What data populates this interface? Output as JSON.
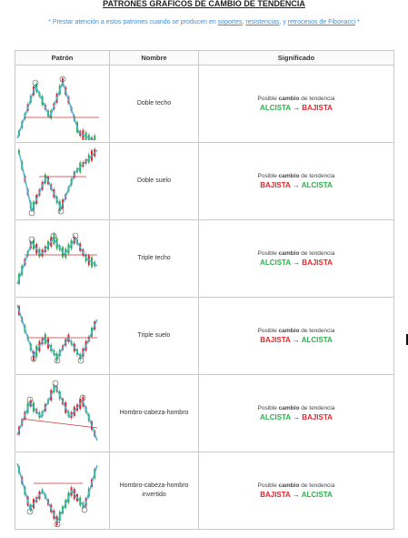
{
  "title": "PATRONES GRÁFICOS DE CAMBIO DE TENDENCIA",
  "note": {
    "prefix": "* Prestar atención a estos patrones cuando se producen en ",
    "link1": "soportes",
    "sep1": ", ",
    "link2": "resistencias",
    "sep2": ", y ",
    "link3": "retrocesos de Fibonacci",
    "suffix": " *"
  },
  "table": {
    "headers": [
      "Patrón",
      "Nombre",
      "Significado"
    ],
    "rows": [
      {
        "name": "Doble techo",
        "line": "Posible",
        "verb": "cambio",
        "rest": "de tendencia",
        "from": "ALCISTA",
        "arrow": "→",
        "to": "BAJISTA",
        "from_color": "#2bb24c",
        "to_color": "#e0262c",
        "chart_icon": "double-top-chart"
      },
      {
        "name": "Doble suelo",
        "line": "Posible",
        "verb": "cambio",
        "rest": "de tendencia",
        "from": "BAJISTA",
        "arrow": "→",
        "to": "ALCISTA",
        "from_color": "#e0262c",
        "to_color": "#2bb24c",
        "chart_icon": "double-bottom-chart"
      },
      {
        "name": "Triple techo",
        "line": "Posible",
        "verb": "cambio",
        "rest": "de tendencia",
        "from": "ALCISTA",
        "arrow": "→",
        "to": "BAJISTA",
        "from_color": "#2bb24c",
        "to_color": "#e0262c",
        "chart_icon": "triple-top-chart"
      },
      {
        "name": "Triple suelo",
        "line": "Posible",
        "verb": "cambio",
        "rest": "de tendencia",
        "from": "BAJISTA",
        "arrow": "→",
        "to": "ALCISTA",
        "from_color": "#e0262c",
        "to_color": "#2bb24c",
        "chart_icon": "triple-bottom-chart"
      },
      {
        "name": "Hombro-cabeza-hombro",
        "line": "Posible",
        "verb": "cambio",
        "rest": "de tendencia",
        "from": "ALCISTA",
        "arrow": "→",
        "to": "BAJISTA",
        "from_color": "#2bb24c",
        "to_color": "#e0262c",
        "chart_icon": "head-and-shoulders-chart"
      },
      {
        "name": "Hombro-cabeza-hombro invertido",
        "line": "Posible",
        "verb": "cambio",
        "rest": "de tendencia",
        "from": "BAJISTA",
        "arrow": "→",
        "to": "ALCISTA",
        "from_color": "#e0262c",
        "to_color": "#2bb24c",
        "chart_icon": "inverse-head-and-shoulders-chart"
      }
    ]
  },
  "colors": {
    "bullish": "#2bb24c",
    "bearish": "#e0262c",
    "trendline": "#4ab3d4",
    "level": "#c9393f"
  }
}
